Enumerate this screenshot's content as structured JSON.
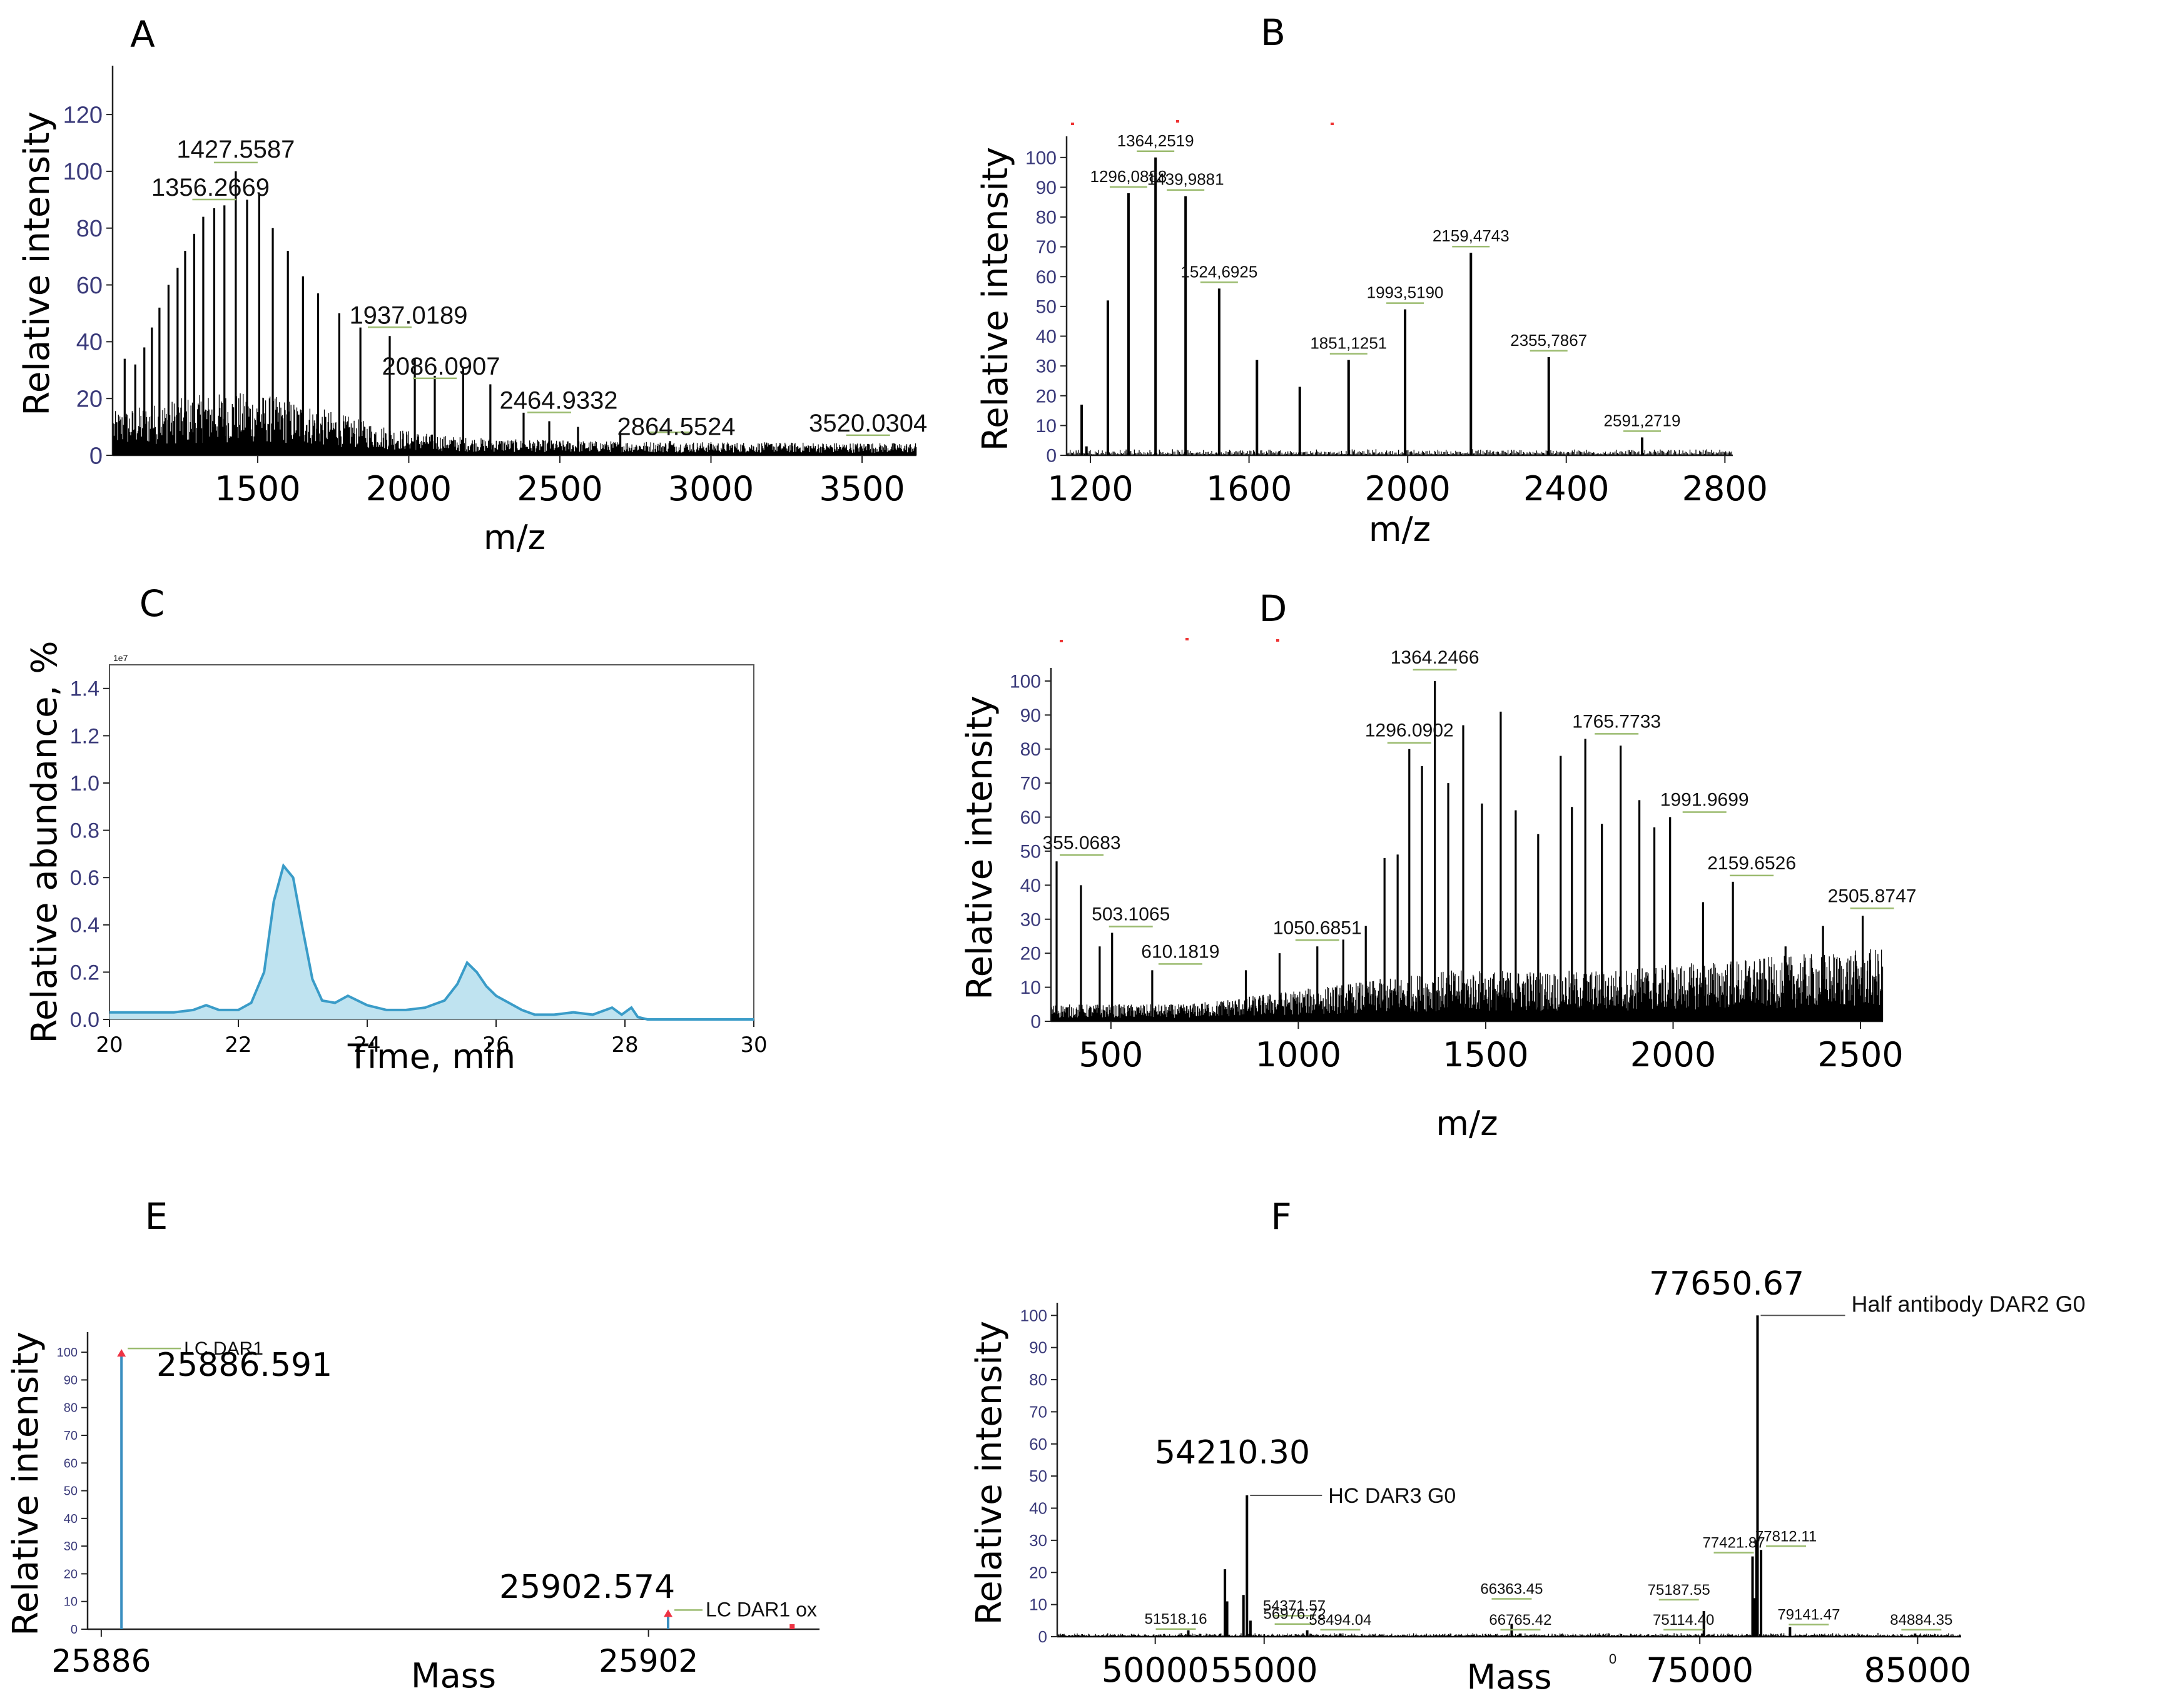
{
  "chart_data": [
    {
      "panel": "A",
      "type": "line",
      "title": "",
      "xlabel": "m/z",
      "ylabel": "Relative intensity",
      "xlim": [
        1020,
        3680
      ],
      "ylim": [
        0,
        135
      ],
      "xticks": [
        1500,
        2000,
        2500,
        3000,
        3500
      ],
      "yticks": [
        0,
        20,
        40,
        60,
        80,
        100,
        120
      ],
      "peaks": [
        {
          "x": 1356.2669,
          "y": 87,
          "label": "1356.2669"
        },
        {
          "x": 1427.5587,
          "y": 100,
          "label": "1427.5587"
        },
        {
          "x": 1937.0189,
          "y": 42,
          "label": "1937.0189"
        },
        {
          "x": 2086.0907,
          "y": 28,
          "label": "2086.0907"
        },
        {
          "x": 2464.9332,
          "y": 12,
          "label": "2464.9332"
        },
        {
          "x": 2864.5524,
          "y": 5,
          "label": "2864.5524"
        },
        {
          "x": 3520.0304,
          "y": 4,
          "label": "3520.0304"
        }
      ]
    },
    {
      "panel": "B",
      "type": "line",
      "title": "",
      "xlabel": "m/z",
      "ylabel": "Relative intensity",
      "xlim": [
        1140,
        2820
      ],
      "ylim": [
        0,
        105
      ],
      "xticks": [
        1200,
        1600,
        2000,
        2400,
        2800
      ],
      "yticks": [
        0,
        10,
        20,
        30,
        40,
        50,
        60,
        70,
        80,
        90,
        100
      ],
      "peaks": [
        {
          "x": 1244,
          "y": 52
        },
        {
          "x": 1296.0888,
          "y": 88,
          "label": "1296,0888"
        },
        {
          "x": 1364.2519,
          "y": 100,
          "label": "1364,2519"
        },
        {
          "x": 1439.9881,
          "y": 87,
          "label": "1439,9881"
        },
        {
          "x": 1524.6925,
          "y": 56,
          "label": "1524,6925"
        },
        {
          "x": 1620,
          "y": 32
        },
        {
          "x": 1728,
          "y": 23
        },
        {
          "x": 1851.1251,
          "y": 32,
          "label": "1851,1251"
        },
        {
          "x": 1993.519,
          "y": 49,
          "label": "1993,5190"
        },
        {
          "x": 2159.4743,
          "y": 68,
          "label": "2159,4743"
        },
        {
          "x": 2355.7867,
          "y": 33,
          "label": "2355,7867"
        },
        {
          "x": 2591.2719,
          "y": 6,
          "label": "2591,2719"
        }
      ]
    },
    {
      "panel": "C",
      "type": "area",
      "title": "",
      "xlabel": "Time, min",
      "ylabel": "Relative abundance, %",
      "multiplier": "1e7",
      "xlim": [
        20,
        30
      ],
      "ylim": [
        0,
        1.5
      ],
      "xticks": [
        20,
        22,
        24,
        26,
        28,
        30
      ],
      "yticks": [
        0.0,
        0.2,
        0.4,
        0.6,
        0.8,
        1.0,
        1.2,
        1.4
      ],
      "ytick_labels": [
        "0.0",
        "0.2",
        "0.4",
        "0.6",
        "0.8",
        "1.0",
        "1.2",
        "1.4"
      ],
      "x": [
        20,
        20.5,
        21,
        21.3,
        21.5,
        21.7,
        22,
        22.2,
        22.4,
        22.55,
        22.7,
        22.85,
        23,
        23.15,
        23.3,
        23.5,
        23.7,
        23.85,
        24,
        24.3,
        24.6,
        24.9,
        25.2,
        25.4,
        25.55,
        25.7,
        25.85,
        26,
        26.2,
        26.4,
        26.6,
        26.9,
        27.2,
        27.5,
        27.8,
        27.95,
        28.1,
        28.2,
        28.35,
        29,
        30
      ],
      "values": [
        0.03,
        0.03,
        0.03,
        0.04,
        0.06,
        0.04,
        0.04,
        0.07,
        0.2,
        0.5,
        0.65,
        0.6,
        0.38,
        0.17,
        0.08,
        0.07,
        0.1,
        0.08,
        0.06,
        0.04,
        0.04,
        0.05,
        0.08,
        0.15,
        0.24,
        0.2,
        0.14,
        0.1,
        0.07,
        0.04,
        0.02,
        0.02,
        0.03,
        0.02,
        0.05,
        0.02,
        0.05,
        0.01,
        0.0,
        0.0,
        0.0
      ]
    },
    {
      "panel": "D",
      "type": "line",
      "title": "",
      "xlabel": "m/z",
      "ylabel": "Relative intensity",
      "xlim": [
        340,
        2560
      ],
      "ylim": [
        0,
        102
      ],
      "xticks": [
        500,
        1000,
        1500,
        2000,
        2500
      ],
      "yticks": [
        0,
        10,
        20,
        30,
        40,
        50,
        60,
        70,
        80,
        90,
        100
      ],
      "peaks": [
        {
          "x": 355.0683,
          "y": 47,
          "label": "355.0683"
        },
        {
          "x": 503.1065,
          "y": 26,
          "label": "503.1065"
        },
        {
          "x": 610.1819,
          "y": 15,
          "label": "610.1819"
        },
        {
          "x": 1050.6851,
          "y": 22,
          "label": "1050.6851"
        },
        {
          "x": 1296.0902,
          "y": 80,
          "label": "1296.0902"
        },
        {
          "x": 1364.2466,
          "y": 100,
          "label": "1364.2466"
        },
        {
          "x": 1765.7733,
          "y": 83,
          "label": "1765.7733"
        },
        {
          "x": 1991.9699,
          "y": 60,
          "label": "1991.9699"
        },
        {
          "x": 2159.6526,
          "y": 41,
          "label": "2159.6526"
        },
        {
          "x": 2505.8747,
          "y": 31,
          "label": "2505.8747"
        }
      ]
    },
    {
      "panel": "E",
      "type": "line",
      "title": "",
      "xlabel": "Mass",
      "ylabel": "Relative intensity",
      "xlim": [
        25885.6,
        25907.0
      ],
      "ylim": [
        0,
        105
      ],
      "xticks": [
        25886,
        25902
      ],
      "yticks": [
        0,
        10,
        20,
        30,
        40,
        50,
        60,
        70,
        80,
        90,
        100
      ],
      "peaks": [
        {
          "x": 25886.591,
          "y": 100,
          "label": "25886.591",
          "annotation": "LC DAR1"
        },
        {
          "x": 25902.574,
          "y": 6,
          "label": "25902.574",
          "annotation": "LC DAR1 ox"
        }
      ]
    },
    {
      "panel": "F",
      "type": "line",
      "title": "",
      "xlabel": "Mass",
      "ylabel": "Relative intensity",
      "xlim": [
        45500,
        87000
      ],
      "ylim": [
        0,
        102
      ],
      "xticks": [
        50000,
        55000,
        75000,
        85000
      ],
      "yticks": [
        0,
        10,
        20,
        30,
        40,
        50,
        60,
        70,
        80,
        90,
        100
      ],
      "peaks": [
        {
          "x": 51518.16,
          "y": 2,
          "label": "51518.16"
        },
        {
          "x": 53200,
          "y": 21
        },
        {
          "x": 54210.3,
          "y": 44,
          "label": "54210.30",
          "annotation": "HC DAR3 G0"
        },
        {
          "x": 54371.57,
          "y": 5,
          "label": "54371.57"
        },
        {
          "x": 56976.72,
          "y": 2,
          "label": "56976.72"
        },
        {
          "x": 58494.04,
          "y": 1,
          "label": "58494.04"
        },
        {
          "x": 66363.45,
          "y": 4,
          "label": "66363.45"
        },
        {
          "x": 66765.42,
          "y": 1,
          "label": "66765.42"
        },
        {
          "x": 75114.4,
          "y": 1,
          "label": "75114.40"
        },
        {
          "x": 75187.55,
          "y": 8,
          "label": "75187.55"
        },
        {
          "x": 77421.87,
          "y": 25,
          "label": "77421.87"
        },
        {
          "x": 77650.67,
          "y": 100,
          "label": "77650.67",
          "annotation": "Half antibody DAR2 G0"
        },
        {
          "x": 77812.11,
          "y": 27,
          "label": "77812.11"
        },
        {
          "x": 79141.47,
          "y": 3,
          "label": "79141.47"
        },
        {
          "x": 84884.35,
          "y": 1,
          "label": "84884.35"
        }
      ],
      "extra_text": "0"
    }
  ]
}
